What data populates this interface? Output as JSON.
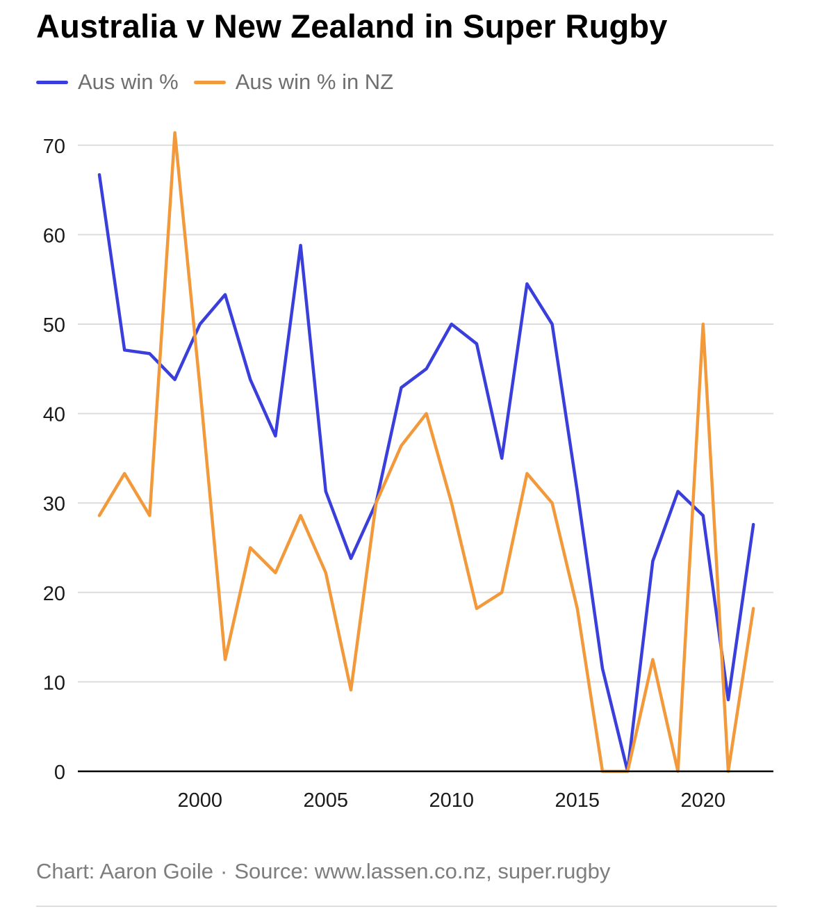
{
  "title": "Australia v New Zealand in Super Rugby",
  "legend": [
    {
      "label": "Aus win %",
      "color": "#3a3fdc"
    },
    {
      "label": "Aus win % in NZ",
      "color": "#f29a3b"
    }
  ],
  "footer": {
    "credit": "Chart: Aaron Goile",
    "separator": "·",
    "source": "Source: www.lassen.co.nz, super.rugby"
  },
  "chart_data": {
    "type": "line",
    "title": "Australia v New Zealand in Super Rugby",
    "xlabel": "",
    "ylabel": "",
    "xlim": [
      1995.5,
      2022.5
    ],
    "ylim": [
      0,
      72
    ],
    "x_ticks": [
      2000,
      2005,
      2010,
      2015,
      2020
    ],
    "y_ticks": [
      0,
      10,
      20,
      30,
      40,
      50,
      60,
      70
    ],
    "grid": "horizontal",
    "legend_position": "top-left",
    "x": [
      1996,
      1997,
      1998,
      1999,
      2000,
      2001,
      2002,
      2003,
      2004,
      2005,
      2006,
      2007,
      2008,
      2009,
      2010,
      2011,
      2012,
      2013,
      2014,
      2015,
      2016,
      2017,
      2018,
      2019,
      2020,
      2021,
      2022
    ],
    "series": [
      {
        "name": "Aus win %",
        "color": "#3a3fdc",
        "values": [
          66.7,
          47.1,
          46.7,
          43.8,
          50.0,
          53.3,
          43.8,
          37.5,
          58.8,
          31.3,
          23.8,
          30.0,
          42.9,
          45.0,
          50.0,
          47.8,
          35.0,
          54.5,
          50.0,
          31.3,
          11.5,
          0.0,
          23.5,
          31.3,
          28.6,
          8.0,
          27.6
        ]
      },
      {
        "name": "Aus win % in NZ",
        "color": "#f29a3b",
        "values": [
          28.6,
          33.3,
          28.6,
          71.4,
          42.9,
          12.5,
          25.0,
          22.2,
          28.6,
          22.2,
          9.1,
          30.0,
          36.4,
          40.0,
          30.0,
          18.2,
          20.0,
          33.3,
          30.0,
          18.2,
          0.0,
          0.0,
          12.5,
          0.0,
          50.0,
          0.0,
          18.2
        ]
      }
    ]
  }
}
